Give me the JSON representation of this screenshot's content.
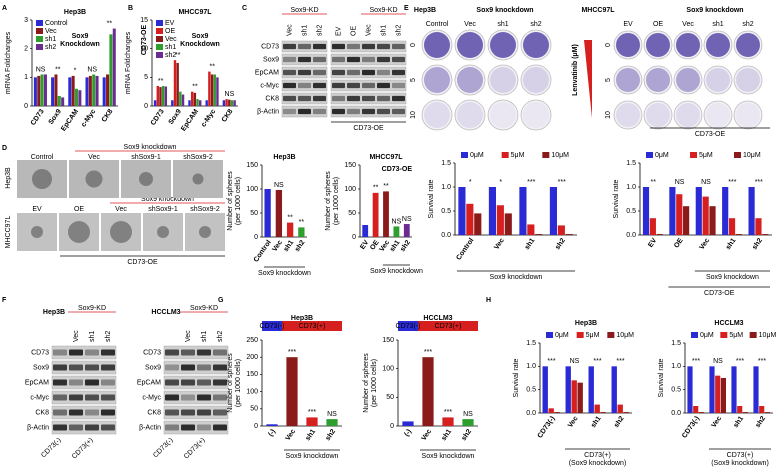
{
  "panel_letters": [
    "A",
    "B",
    "C",
    "D",
    "E",
    "F",
    "G",
    "H"
  ],
  "blot_c": {
    "groups": [
      "Sox9-KD",
      "Sox9-KD"
    ],
    "lanes": [
      "Vec",
      "sh1",
      "sh2",
      "EV",
      "OE",
      "Vec",
      "sh1",
      "sh2"
    ],
    "rows": [
      "CD73",
      "Sox9",
      "EpCAM",
      "c-Myc",
      "CK8",
      "β-Actin"
    ],
    "footer": "CD73-OE"
  },
  "colony_e": {
    "lines": [
      "Hep3B",
      "MHCC97L"
    ],
    "group_labels": [
      "Sox9 knockdown",
      "Sox9 knockdown"
    ],
    "columns_left": [
      "Control",
      "Vec",
      "sh1",
      "sh2"
    ],
    "columns_right": [
      "EV",
      "OE",
      "Vec",
      "sh1",
      "sh2"
    ],
    "dose_title": "Lenvatinib (μM)",
    "doses": [
      "0",
      "5",
      "10"
    ],
    "footer": "CD73-OE"
  },
  "sphere_d": {
    "lines": [
      "Hep3B",
      "MHCC97L"
    ],
    "row1": [
      "Control",
      "Vec",
      "shSox9-1",
      "shSox9-2"
    ],
    "row2": [
      "EV",
      "OE",
      "Vec",
      "shSox9-1",
      "shSox9-2"
    ],
    "group_labels": [
      "Sox9 knockdown",
      "Sox9 knockdown"
    ],
    "footer": "CD73-OE"
  },
  "blot_f": [
    {
      "line": "Hep3B",
      "group": "Sox9-KD",
      "lanes": [
        "Vec",
        "sh1",
        "sh2"
      ],
      "rows": [
        "CD73",
        "Sox9",
        "EpCAM",
        "c-Myc",
        "CK8",
        "β-Actin"
      ],
      "bottom": [
        "CD73(-)",
        "CD73(+)"
      ]
    },
    {
      "line": "HCCLM3",
      "group": "Sox9-KD",
      "lanes": [
        "Vec",
        "sh1",
        "sh2"
      ],
      "rows": [
        "CD73",
        "Sox9",
        "EpCAM",
        "c-Myc",
        "CK8",
        "β-Actin"
      ],
      "bottom": [
        "CD73(-)",
        "CD73(+)"
      ]
    }
  ],
  "chart_data": [
    {
      "type": "bar",
      "title": "Hep3B",
      "ylabel": [
        "mRNA Foldchanges"
      ],
      "categories": [
        "CD73",
        "Sox9",
        "EpCAM",
        "c-Myc",
        "CK8"
      ],
      "series": [
        {
          "name": "Control",
          "color": "#2b2bd6",
          "values": [
            1,
            1,
            1,
            1,
            1
          ]
        },
        {
          "name": "Vec",
          "color": "#8b1a1a",
          "values": [
            1.05,
            1.1,
            1.05,
            1.05,
            1.1
          ]
        },
        {
          "name": "sh1",
          "color": "#2e9e2e",
          "values": [
            1.1,
            0.35,
            0.6,
            1.1,
            2.5
          ]
        },
        {
          "name": "sh2",
          "color": "#6a2c91",
          "values": [
            1.1,
            0.3,
            0.55,
            1.05,
            2.7
          ]
        }
      ],
      "ylim": [
        0,
        3
      ],
      "yticks": [
        0,
        1,
        2,
        3
      ],
      "legend": "upper left",
      "legend_note": [
        "Sox9",
        "Knockdown"
      ],
      "annotations": [
        "NS",
        "**",
        "*",
        "NS",
        "**"
      ]
    },
    {
      "type": "bar",
      "title": "MHCC97L",
      "ylabel": [
        "mRNA Foldchanges"
      ],
      "categories": [
        "CD73",
        "Sox9",
        "EpCAM",
        "c-Myc",
        "CK8"
      ],
      "series": [
        {
          "name": "EV",
          "color": "#2b2bd6",
          "values": [
            1,
            1,
            1,
            1,
            1
          ]
        },
        {
          "name": "OE",
          "color": "#d62020",
          "values": [
            3.5,
            8,
            2.5,
            6,
            1.2
          ]
        },
        {
          "name": "Vec",
          "color": "#8b1a1a",
          "values": [
            3.3,
            7.5,
            2.3,
            5.5,
            1.1
          ]
        },
        {
          "name": "sh1",
          "color": "#2e9e2e",
          "values": [
            3.5,
            2.5,
            1.2,
            5.5,
            1
          ]
        },
        {
          "name": "sh2",
          "color": "#6a2c91",
          "values": [
            3.4,
            2,
            1,
            5,
            1
          ]
        }
      ],
      "ylim": [
        0,
        15
      ],
      "yticks": [
        0,
        5,
        10,
        15
      ],
      "legend": "upper left",
      "legend_note": [
        "Sox9",
        "Knockdown"
      ],
      "side_label": "CD73-OE",
      "annotations": [
        "**",
        "**",
        "**",
        "**",
        "NS"
      ]
    },
    {
      "type": "bar",
      "title": "Hep3B",
      "ylabel": [
        "Number of spheres",
        "(per 1000 cells)"
      ],
      "categories": [
        "Control",
        "Vec",
        "sh1",
        "sh2"
      ],
      "values": [
        100,
        98,
        30,
        20
      ],
      "colors": [
        "#2b2bd6",
        "#8b1a1a",
        "#d62020",
        "#2e9e2e"
      ],
      "ylim": [
        0,
        150
      ],
      "yticks": [
        0,
        50,
        100,
        150
      ],
      "annotations": [
        "",
        "NS",
        "**",
        "**"
      ],
      "group_label": "Sox9 knockdown"
    },
    {
      "type": "bar",
      "title": "MHCC97L",
      "ylabel": [
        "Number of spheres",
        "(per 1000 cells)"
      ],
      "categories": [
        "EV",
        "OE",
        "Vec",
        "sh1",
        "sh2"
      ],
      "values": [
        25,
        92,
        95,
        22,
        27
      ],
      "colors": [
        "#2b2bd6",
        "#d62020",
        "#8b1a1a",
        "#2e9e2e",
        "#6a2c91"
      ],
      "ylim": [
        0,
        150
      ],
      "yticks": [
        0,
        50,
        100,
        150
      ],
      "annotations": [
        "",
        "**",
        "**",
        "NS",
        "NS"
      ],
      "side_label": "CD73-OE",
      "group_label": "Sox9 knockdown"
    },
    {
      "type": "bar",
      "ylabel": [
        "Survival rate"
      ],
      "categories": [
        "Control",
        "Vec",
        "sh1",
        "sh2"
      ],
      "series": [
        {
          "name": "0μM",
          "color": "#2b2bd6",
          "values": [
            1,
            1,
            1,
            1
          ]
        },
        {
          "name": "5μM",
          "color": "#d62020",
          "values": [
            0.65,
            0.62,
            0.22,
            0.2
          ]
        },
        {
          "name": "10μM",
          "color": "#8b1a1a",
          "values": [
            0.45,
            0.45,
            0.02,
            0.02
          ]
        }
      ],
      "ylim": [
        0,
        1.5
      ],
      "yticks": [
        {
          "value": 0,
          "label": "0.0"
        },
        0.5,
        {
          "value": 1,
          "label": "1.0"
        },
        1.5
      ],
      "legend": "above",
      "annotations": [
        "*",
        "*",
        "***",
        "***"
      ],
      "group_label": "Sox9 knockdown"
    },
    {
      "type": "bar",
      "ylabel": [
        "Survival rate"
      ],
      "categories": [
        "EV",
        "OE",
        "Vec",
        "sh1",
        "sh2"
      ],
      "series": [
        {
          "name": "0μM",
          "color": "#2b2bd6",
          "values": [
            1,
            1,
            1,
            1,
            1
          ]
        },
        {
          "name": "5μM",
          "color": "#d62020",
          "values": [
            0.35,
            0.85,
            0.8,
            0.35,
            0.35
          ]
        },
        {
          "name": "10μM",
          "color": "#8b1a1a",
          "values": [
            0.02,
            0.6,
            0.6,
            0.02,
            0.02
          ]
        }
      ],
      "ylim": [
        0,
        1.5
      ],
      "yticks": [
        {
          "value": 0,
          "label": "0.0"
        },
        0.5,
        {
          "value": 1,
          "label": "1.0"
        },
        1.5
      ],
      "legend": "above",
      "annotations": [
        "**",
        "NS",
        "NS",
        "***",
        "***"
      ],
      "group_label": "Sox9 knockdown",
      "oe_label": "CD73-OE"
    },
    {
      "type": "bar",
      "title": "Hep3B",
      "ylabel": [
        "Number of spheres",
        "(per 1000 cells)"
      ],
      "categories": [
        "(-)",
        "Vec",
        "sh1",
        "sh2"
      ],
      "values": [
        5,
        200,
        25,
        20
      ],
      "colors": [
        "#2b2bd6",
        "#8b1a1a",
        "#d62020",
        "#2e9e2e"
      ],
      "ylim": [
        0,
        250
      ],
      "yticks": [
        0,
        50,
        100,
        150,
        200,
        250
      ],
      "header": [
        "CD73(-)",
        "CD73(+)"
      ],
      "annotations": [
        "",
        "***",
        "***",
        "NS"
      ],
      "group_label": "Sox9 knockdown"
    },
    {
      "type": "bar",
      "title": "HCCLM3",
      "ylabel": [
        "Number of spheres",
        "(per 1000 cells)"
      ],
      "categories": [
        "(-)",
        "Vec",
        "sh1",
        "sh2"
      ],
      "values": [
        8,
        120,
        15,
        12
      ],
      "colors": [
        "#2b2bd6",
        "#8b1a1a",
        "#d62020",
        "#2e9e2e"
      ],
      "ylim": [
        0,
        150
      ],
      "yticks": [
        0,
        50,
        100,
        150
      ],
      "header": [
        "CD73(-)",
        "CD73(+)"
      ],
      "annotations": [
        "",
        "***",
        "***",
        "NS"
      ],
      "group_label": "Sox9 knockdown"
    },
    {
      "type": "bar",
      "title": "Hep3B",
      "ylabel": [
        "Survival rate"
      ],
      "categories": [
        "CD73(-)",
        "Vec",
        "sh1",
        "sh2"
      ],
      "series": [
        {
          "name": "0μM",
          "color": "#2b2bd6",
          "values": [
            1,
            1,
            1,
            1
          ]
        },
        {
          "name": "5μM",
          "color": "#d62020",
          "values": [
            0.1,
            0.7,
            0.18,
            0.18
          ]
        },
        {
          "name": "10μM",
          "color": "#8b1a1a",
          "values": [
            0.02,
            0.65,
            0.02,
            0.02
          ]
        }
      ],
      "ylim": [
        0,
        1.5
      ],
      "yticks": [
        {
          "value": 0,
          "label": "0.0"
        },
        0.5,
        {
          "value": 1,
          "label": "1.0"
        },
        1.5
      ],
      "legend": "above",
      "annotations": [
        "***",
        "NS",
        "***",
        "***"
      ],
      "sub_labels": [
        "CD73(+)",
        "(Sox9 knockdown)"
      ]
    },
    {
      "type": "bar",
      "title": "HCCLM3",
      "ylabel": [
        "Survival rate"
      ],
      "categories": [
        "CD73(-)",
        "Vec",
        "sh1",
        "sh2"
      ],
      "series": [
        {
          "name": "0μM",
          "color": "#2b2bd6",
          "values": [
            1,
            1,
            1,
            1
          ]
        },
        {
          "name": "5μM",
          "color": "#d62020",
          "values": [
            0.15,
            0.8,
            0.15,
            0.15
          ]
        },
        {
          "name": "10μM",
          "color": "#8b1a1a",
          "values": [
            0.02,
            0.75,
            0.02,
            0.02
          ]
        }
      ],
      "ylim": [
        0,
        1.5
      ],
      "yticks": [
        {
          "value": 0,
          "label": "0.0"
        },
        0.5,
        {
          "value": 1,
          "label": "1.0"
        },
        1.5
      ],
      "legend": "above",
      "annotations": [
        "***",
        "NS",
        "***",
        "***"
      ],
      "sub_labels": [
        "CD73(+)",
        "(Sox9 knockdown)"
      ]
    }
  ]
}
